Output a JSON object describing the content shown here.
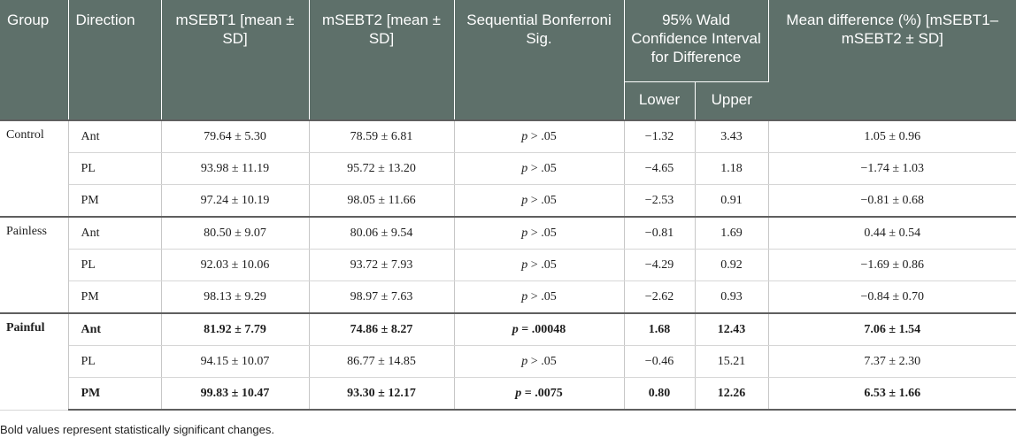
{
  "header": {
    "group": "Group",
    "direction": "Direction",
    "msebt1": "mSEBT1 [mean ± SD]",
    "msebt2": "mSEBT2 [mean ± SD]",
    "bonferroni": "Sequential Bonferroni Sig.",
    "wald": "95% Wald Confidence Interval for Difference",
    "lower": "Lower",
    "upper": "Upper",
    "mean_diff": "Mean difference (%) [mSEBT1–mSEBT2 ± SD]"
  },
  "groups": [
    {
      "name": "Control",
      "rows": [
        {
          "direction": "Ant",
          "msebt1": "79.64 ± 5.30",
          "msebt2": "78.59 ± 6.81",
          "sig_p": "p",
          "sig_val": " > .05",
          "lower": "−1.32",
          "upper": "3.43",
          "diff": "1.05 ± 0.96"
        },
        {
          "direction": "PL",
          "msebt1": "93.98 ± 11.19",
          "msebt2": "95.72 ± 13.20",
          "sig_p": "p",
          "sig_val": " > .05",
          "lower": "−4.65",
          "upper": "1.18",
          "diff": "−1.74 ± 1.03"
        },
        {
          "direction": "PM",
          "msebt1": "97.24 ± 10.19",
          "msebt2": "98.05 ± 11.66",
          "sig_p": "p",
          "sig_val": " > .05",
          "lower": "−2.53",
          "upper": "0.91",
          "diff": "−0.81 ± 0.68"
        }
      ]
    },
    {
      "name": "Painless",
      "rows": [
        {
          "direction": "Ant",
          "msebt1": "80.50 ± 9.07",
          "msebt2": "80.06 ± 9.54",
          "sig_p": "p",
          "sig_val": " > .05",
          "lower": "−0.81",
          "upper": "1.69",
          "diff": "0.44 ± 0.54"
        },
        {
          "direction": "PL",
          "msebt1": "92.03 ± 10.06",
          "msebt2": "93.72 ± 7.93",
          "sig_p": "p",
          "sig_val": " > .05",
          "lower": "−4.29",
          "upper": "0.92",
          "diff": "−1.69 ± 0.86"
        },
        {
          "direction": "PM",
          "msebt1": "98.13 ± 9.29",
          "msebt2": "98.97 ± 7.63",
          "sig_p": "p",
          "sig_val": " > .05",
          "lower": "−2.62",
          "upper": "0.93",
          "diff": "−0.84 ± 0.70"
        }
      ]
    },
    {
      "name": "Painful",
      "rows": [
        {
          "direction": "Ant",
          "msebt1": "81.92 ± 7.79",
          "msebt2": "74.86 ± 8.27",
          "sig_p": "p",
          "sig_val": " = .00048",
          "lower": "1.68",
          "upper": "12.43",
          "diff": "7.06 ± 1.54",
          "bold": true
        },
        {
          "direction": "PL",
          "msebt1": "94.15 ± 10.07",
          "msebt2": "86.77 ± 14.85",
          "sig_p": "p",
          "sig_val": " > .05",
          "lower": "−0.46",
          "upper": "15.21",
          "diff": "7.37 ± 2.30"
        },
        {
          "direction": "PM",
          "msebt1": "99.83 ± 10.47",
          "msebt2": "93.30 ± 12.17",
          "sig_p": "p",
          "sig_val": " = .0075",
          "lower": "0.80",
          "upper": "12.26",
          "diff": "6.53 ± 1.66",
          "bold": true
        }
      ]
    }
  ],
  "footnote": "Bold values represent statistically significant changes."
}
